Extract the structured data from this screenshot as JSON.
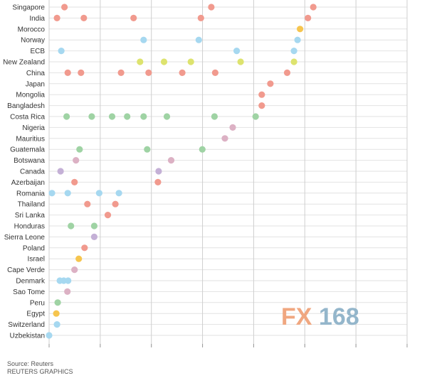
{
  "chart_data": {
    "type": "scatter",
    "xlim": [
      0,
      100
    ],
    "colors": {
      "red": "#f19a8e",
      "blue": "#a6d8f0",
      "green": "#9fd3a4",
      "yellow": "#dde36e",
      "orange": "#f6c54e",
      "purple": "#c4b0d6",
      "pink": "#dcb1c4"
    },
    "categories": [
      "Singapore",
      "India",
      "Morocco",
      "Norway",
      "ECB",
      "New Zealand",
      "China",
      "Japan",
      "Mongolia",
      "Bangladesh",
      "Costa Rica",
      "Nigeria",
      "Mauritius",
      "Guatemala",
      "Botswana",
      "Canada",
      "Azerbaijan",
      "Romania",
      "Thailand",
      "Sri Lanka",
      "Honduras",
      "Sierra Leone",
      "Poland",
      "Israel",
      "Cape Verde",
      "Denmark",
      "Sao Tome",
      "Peru",
      "Egypt",
      "Switzerland",
      "Uzbekistan"
    ],
    "series": [
      {
        "category": "Singapore",
        "color": "red",
        "x": [
          4.3,
          45.3,
          73.8
        ]
      },
      {
        "category": "India",
        "color": "red",
        "x": [
          2.2,
          9.7,
          23.6,
          42.4,
          72.3
        ]
      },
      {
        "category": "Morocco",
        "color": "orange",
        "x": [
          70.1
        ]
      },
      {
        "category": "Norway",
        "color": "blue",
        "x": [
          26.4,
          41.8,
          69.4
        ]
      },
      {
        "category": "ECB",
        "color": "blue",
        "x": [
          3.4,
          52.4,
          68.4
        ]
      },
      {
        "category": "New Zealand",
        "color": "yellow",
        "x": [
          25.4,
          32.1,
          39.6,
          53.5,
          68.4
        ]
      },
      {
        "category": "China",
        "color": "red",
        "x": [
          5.2,
          8.9,
          20.1,
          27.8,
          37.2,
          46.4,
          66.5
        ]
      },
      {
        "category": "Japan",
        "color": "red",
        "x": [
          61.8
        ]
      },
      {
        "category": "Mongolia",
        "color": "red",
        "x": [
          59.4
        ]
      },
      {
        "category": "Bangladesh",
        "color": "red",
        "x": [
          59.4
        ]
      },
      {
        "category": "Costa Rica",
        "color": "green",
        "x": [
          4.9,
          11.9,
          17.6,
          21.8,
          26.4,
          32.9,
          46.2,
          57.7
        ]
      },
      {
        "category": "Nigeria",
        "color": "pink",
        "x": [
          51.3
        ]
      },
      {
        "category": "Mauritius",
        "color": "pink",
        "x": [
          49.1
        ]
      },
      {
        "category": "Guatemala",
        "color": "green",
        "x": [
          8.5,
          27.4,
          42.8
        ]
      },
      {
        "category": "Botswana",
        "color": "pink",
        "x": [
          7.5,
          34.1
        ]
      },
      {
        "category": "Canada",
        "color": "purple",
        "x": [
          3.2,
          30.6
        ]
      },
      {
        "category": "Azerbaijan",
        "color": "red",
        "x": [
          7.1,
          30.4
        ]
      },
      {
        "category": "Romania",
        "color": "blue",
        "x": [
          0.8,
          5.2,
          14.0,
          19.5
        ]
      },
      {
        "category": "Thailand",
        "color": "red",
        "x": [
          10.7,
          18.5
        ]
      },
      {
        "category": "Sri Lanka",
        "color": "red",
        "x": [
          16.4
        ]
      },
      {
        "category": "Honduras",
        "color": "green",
        "x": [
          6.1,
          12.6
        ]
      },
      {
        "category": "Sierra Leone",
        "color": "purple",
        "x": [
          12.6
        ]
      },
      {
        "category": "Poland",
        "color": "red",
        "x": [
          9.9
        ]
      },
      {
        "category": "Israel",
        "color": "orange",
        "x": [
          8.3
        ]
      },
      {
        "category": "Cape Verde",
        "color": "pink",
        "x": [
          7.1
        ]
      },
      {
        "category": "Denmark",
        "color": "blue",
        "x": [
          3.0,
          4.1,
          5.3
        ]
      },
      {
        "category": "Sao Tome",
        "color": "pink",
        "x": [
          5.1
        ]
      },
      {
        "category": "Peru",
        "color": "green",
        "x": [
          2.4
        ]
      },
      {
        "category": "Egypt",
        "color": "orange",
        "x": [
          2.0
        ]
      },
      {
        "category": "Switzerland",
        "color": "blue",
        "x": [
          2.2
        ]
      },
      {
        "category": "Uzbekistan",
        "color": "blue",
        "x": [
          0.0
        ]
      }
    ]
  },
  "footer": {
    "source": "Source: Reuters",
    "credit": "REUTERS GRAPHICS"
  },
  "watermark": {
    "left": "FX",
    "right": "168"
  }
}
